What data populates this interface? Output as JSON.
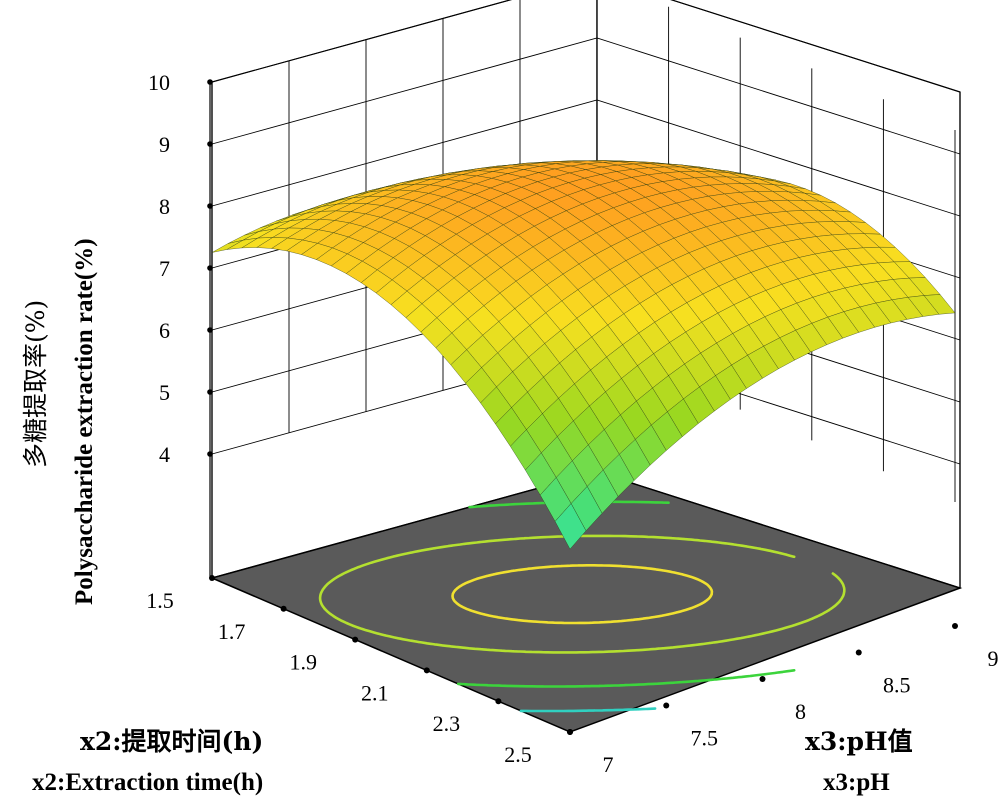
{
  "chart_data": {
    "type": "surface",
    "z_axis": {
      "label_cn": "多糖提取率(%)",
      "label_en": "Polysaccharide extraction rate(%)",
      "ticks": [
        4,
        5,
        6,
        7,
        8,
        9,
        10
      ],
      "range": [
        4,
        10
      ]
    },
    "x_axis": {
      "label_cn": "x2:提取时间(h)",
      "label_en": "x2:Extraction time(h)",
      "ticks": [
        "1.5",
        "1.7",
        "1.9",
        "2.1",
        "2.3",
        "2.5"
      ],
      "range": [
        1.5,
        2.5
      ]
    },
    "y_axis": {
      "label_cn": "x3:pH值",
      "label_en": "x3:pH",
      "ticks": [
        "7",
        "7.5",
        "8",
        "8.5",
        "9"
      ],
      "range": [
        7,
        9
      ]
    },
    "surface": {
      "peak": 8.75,
      "peak_x": 2.0,
      "peak_y": 8.0,
      "corners": {
        "x1.5_y7": 7.75,
        "x2.5_y7": 4.1,
        "x2.5_y9": 7.35,
        "x1.5_y9": 7.0
      }
    },
    "contour_levels": [
      8.5,
      8.0,
      7.0,
      6.0
    ],
    "contour_colors": [
      "#f0e030",
      "#b4e030",
      "#3cd43c",
      "#30d0c0"
    ],
    "colormap": [
      "#30e8ff",
      "#40e080",
      "#9ad820",
      "#f8e020",
      "#ff9820"
    ],
    "floor_color": "#5a5a5a",
    "grid": true
  }
}
